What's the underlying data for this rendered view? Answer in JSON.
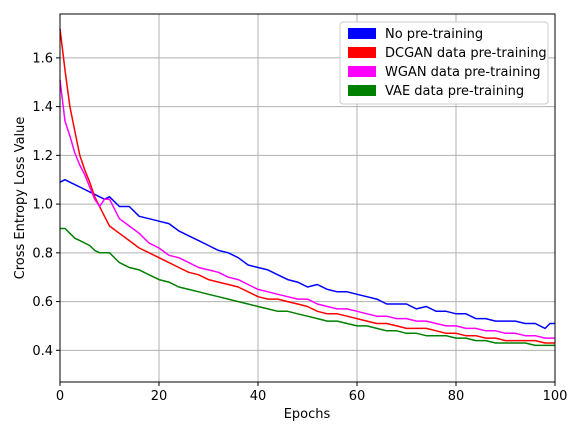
{
  "chart_data": {
    "type": "line",
    "title": "",
    "xlabel": "Epochs",
    "ylabel": "Cross Entropy Loss Value",
    "xlim": [
      0,
      100
    ],
    "ylim": [
      0.27,
      1.78
    ],
    "xticks": [
      0,
      20,
      40,
      60,
      80,
      100
    ],
    "yticks": [
      0.4,
      0.6,
      0.8,
      1.0,
      1.2,
      1.4,
      1.6
    ],
    "xtick_labels": [
      "0",
      "20",
      "40",
      "60",
      "80",
      "100"
    ],
    "ytick_labels": [
      "0.4",
      "0.6",
      "0.8",
      "1.0",
      "1.2",
      "1.4",
      "1.6"
    ],
    "grid": true,
    "legend_position": "top-right",
    "series": [
      {
        "name": "No pre-training",
        "color": "#0000ff",
        "x": [
          0,
          1,
          2,
          3,
          4,
          5,
          6,
          7,
          8,
          9,
          10,
          12,
          14,
          16,
          18,
          20,
          22,
          24,
          26,
          28,
          30,
          32,
          34,
          36,
          38,
          40,
          42,
          44,
          46,
          48,
          50,
          52,
          54,
          56,
          58,
          60,
          62,
          64,
          66,
          68,
          70,
          72,
          74,
          76,
          78,
          80,
          82,
          84,
          86,
          88,
          90,
          92,
          94,
          96,
          98,
          99,
          100
        ],
        "values": [
          1.09,
          1.1,
          1.09,
          1.08,
          1.07,
          1.06,
          1.05,
          1.04,
          1.03,
          1.02,
          1.03,
          0.99,
          0.99,
          0.95,
          0.94,
          0.93,
          0.92,
          0.89,
          0.87,
          0.85,
          0.83,
          0.81,
          0.8,
          0.78,
          0.75,
          0.74,
          0.73,
          0.71,
          0.69,
          0.68,
          0.66,
          0.67,
          0.65,
          0.64,
          0.64,
          0.63,
          0.62,
          0.61,
          0.59,
          0.59,
          0.59,
          0.57,
          0.58,
          0.56,
          0.56,
          0.55,
          0.55,
          0.53,
          0.53,
          0.52,
          0.52,
          0.52,
          0.51,
          0.51,
          0.49,
          0.51,
          0.51
        ]
      },
      {
        "name": "DCGAN data pre-training",
        "color": "#ff0000",
        "x": [
          0,
          1,
          2,
          3,
          4,
          5,
          6,
          7,
          8,
          9,
          10,
          12,
          14,
          16,
          18,
          20,
          22,
          24,
          26,
          28,
          30,
          32,
          34,
          36,
          38,
          40,
          42,
          44,
          46,
          48,
          50,
          52,
          54,
          56,
          58,
          60,
          62,
          64,
          66,
          68,
          70,
          72,
          74,
          76,
          78,
          80,
          82,
          84,
          86,
          88,
          90,
          92,
          94,
          96,
          98,
          100
        ],
        "values": [
          1.72,
          1.55,
          1.4,
          1.3,
          1.2,
          1.14,
          1.09,
          1.03,
          0.99,
          0.95,
          0.91,
          0.88,
          0.85,
          0.82,
          0.8,
          0.78,
          0.76,
          0.74,
          0.72,
          0.71,
          0.69,
          0.68,
          0.67,
          0.66,
          0.64,
          0.62,
          0.61,
          0.61,
          0.6,
          0.59,
          0.58,
          0.56,
          0.55,
          0.55,
          0.54,
          0.53,
          0.52,
          0.51,
          0.51,
          0.5,
          0.49,
          0.49,
          0.49,
          0.48,
          0.47,
          0.47,
          0.46,
          0.46,
          0.45,
          0.45,
          0.44,
          0.44,
          0.44,
          0.44,
          0.43,
          0.43
        ]
      },
      {
        "name": "WGAN data pre-training",
        "color": "#ff00ff",
        "x": [
          0,
          1,
          2,
          3,
          4,
          5,
          6,
          7,
          8,
          9,
          10,
          12,
          14,
          16,
          18,
          20,
          22,
          24,
          26,
          28,
          30,
          32,
          34,
          36,
          38,
          40,
          42,
          44,
          46,
          48,
          50,
          52,
          54,
          56,
          58,
          60,
          62,
          64,
          66,
          68,
          70,
          72,
          74,
          76,
          78,
          80,
          82,
          84,
          86,
          88,
          90,
          92,
          94,
          96,
          98,
          100
        ],
        "values": [
          1.51,
          1.34,
          1.28,
          1.21,
          1.16,
          1.12,
          1.07,
          1.02,
          0.99,
          1.02,
          1.02,
          0.94,
          0.91,
          0.88,
          0.84,
          0.82,
          0.79,
          0.78,
          0.76,
          0.74,
          0.73,
          0.72,
          0.7,
          0.69,
          0.67,
          0.65,
          0.64,
          0.63,
          0.62,
          0.61,
          0.61,
          0.59,
          0.58,
          0.57,
          0.57,
          0.56,
          0.55,
          0.54,
          0.54,
          0.53,
          0.53,
          0.52,
          0.52,
          0.51,
          0.5,
          0.5,
          0.49,
          0.49,
          0.48,
          0.48,
          0.47,
          0.47,
          0.46,
          0.46,
          0.45,
          0.45
        ]
      },
      {
        "name": "VAE data pre-training",
        "color": "#008000",
        "x": [
          0,
          1,
          2,
          3,
          4,
          5,
          6,
          7,
          8,
          9,
          10,
          12,
          14,
          16,
          18,
          20,
          22,
          24,
          26,
          28,
          30,
          32,
          34,
          36,
          38,
          40,
          42,
          44,
          46,
          48,
          50,
          52,
          54,
          56,
          58,
          60,
          62,
          64,
          66,
          68,
          70,
          72,
          74,
          76,
          78,
          80,
          82,
          84,
          86,
          88,
          90,
          92,
          94,
          96,
          98,
          100
        ],
        "values": [
          0.9,
          0.9,
          0.88,
          0.86,
          0.85,
          0.84,
          0.83,
          0.81,
          0.8,
          0.8,
          0.8,
          0.76,
          0.74,
          0.73,
          0.71,
          0.69,
          0.68,
          0.66,
          0.65,
          0.64,
          0.63,
          0.62,
          0.61,
          0.6,
          0.59,
          0.58,
          0.57,
          0.56,
          0.56,
          0.55,
          0.54,
          0.53,
          0.52,
          0.52,
          0.51,
          0.5,
          0.5,
          0.49,
          0.48,
          0.48,
          0.47,
          0.47,
          0.46,
          0.46,
          0.46,
          0.45,
          0.45,
          0.44,
          0.44,
          0.43,
          0.43,
          0.43,
          0.43,
          0.42,
          0.42,
          0.42
        ]
      }
    ]
  }
}
